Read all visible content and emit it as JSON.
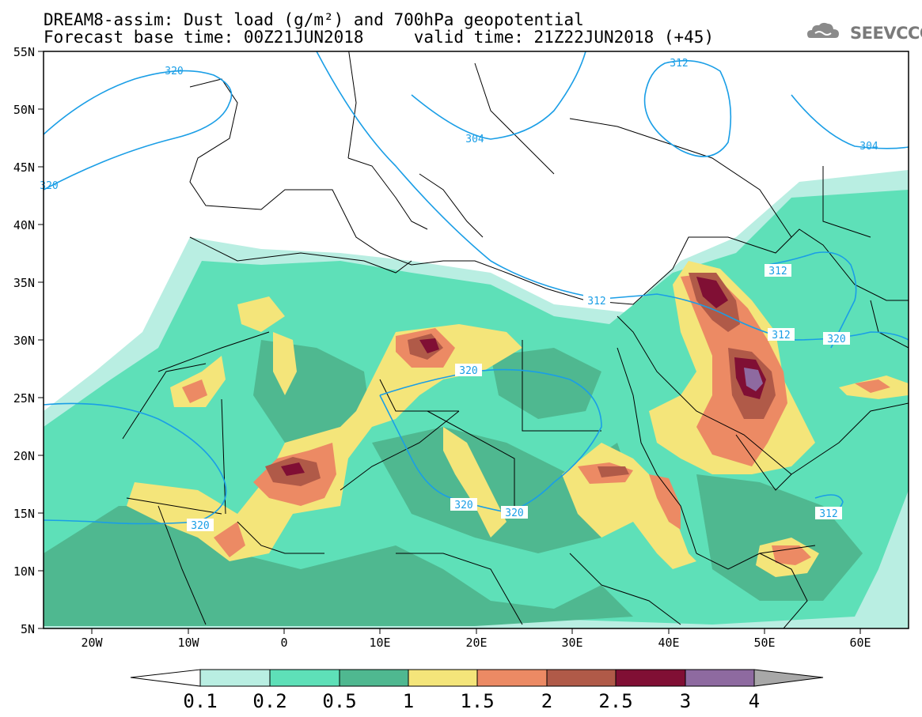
{
  "header": {
    "title_line1": "DREAM8-assim: Dust load (g/m²) and 700hPa geopotential",
    "title_line2": "Forecast base time: 00Z21JUN2018     valid time: 21Z22JUN2018 (+45)",
    "logo_text": "SEEVCCC"
  },
  "axes": {
    "lat_labels": [
      "55N",
      "50N",
      "45N",
      "40N",
      "35N",
      "30N",
      "25N",
      "20N",
      "15N",
      "10N",
      "5N"
    ],
    "lon_labels": [
      "20W",
      "10W",
      "0",
      "10E",
      "20E",
      "30E",
      "40E",
      "50E",
      "60E"
    ]
  },
  "contour_labels": [
    "320",
    "320",
    "304",
    "312",
    "304",
    "312",
    "312",
    "312",
    "320",
    "320",
    "320",
    "320",
    "312"
  ],
  "colorbar": {
    "ticks": [
      "0.1",
      "0.2",
      "0.5",
      "1",
      "1.5",
      "2",
      "2.5",
      "3",
      "4"
    ],
    "colors": [
      "#ffffff",
      "#b9eee2",
      "#5ee0b8",
      "#4fb890",
      "#f4e57a",
      "#ec8a64",
      "#b05a48",
      "#800f34",
      "#8e6aa0",
      "#a8a8a8"
    ]
  },
  "colors": {
    "contour": "#1a9ee6",
    "land_border": "#000000"
  }
}
